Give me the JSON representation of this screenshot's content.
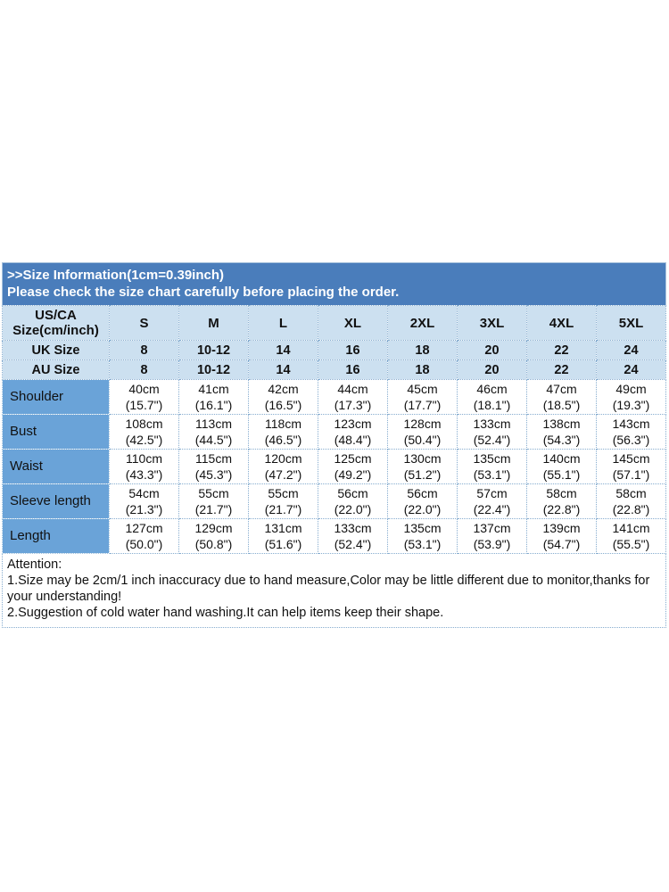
{
  "banner": {
    "line1": ">>Size Information(1cm=0.39inch)",
    "line2": "Please check the size chart carefully before placing the order."
  },
  "table": {
    "corner_label": "US/CA\nSize(cm/inch)",
    "size_columns": [
      "S",
      "M",
      "L",
      "XL",
      "2XL",
      "3XL",
      "4XL",
      "5XL"
    ],
    "uk": {
      "label": "UK Size",
      "values": [
        "8",
        "10-12",
        "14",
        "16",
        "18",
        "20",
        "22",
        "24"
      ]
    },
    "au": {
      "label": "AU Size",
      "values": [
        "8",
        "10-12",
        "14",
        "16",
        "18",
        "20",
        "22",
        "24"
      ]
    },
    "rows": [
      {
        "label": "Shoulder",
        "cells": [
          "40cm\n(15.7\")",
          "41cm\n(16.1\")",
          "42cm\n(16.5\")",
          "44cm\n(17.3\")",
          "45cm\n(17.7\")",
          "46cm\n(18.1\")",
          "47cm\n(18.5\")",
          "49cm\n(19.3\")"
        ]
      },
      {
        "label": "Bust",
        "cells": [
          "108cm\n(42.5\")",
          "113cm\n(44.5\")",
          "118cm\n(46.5\")",
          "123cm\n(48.4\")",
          "128cm\n(50.4\")",
          "133cm\n(52.4\")",
          "138cm\n(54.3\")",
          "143cm\n(56.3\")"
        ]
      },
      {
        "label": "Waist",
        "cells": [
          "110cm\n(43.3\")",
          "115cm\n(45.3\")",
          "120cm\n(47.2\")",
          "125cm\n(49.2\")",
          "130cm\n(51.2\")",
          "135cm\n(53.1\")",
          "140cm\n(55.1\")",
          "145cm\n(57.1\")"
        ]
      },
      {
        "label": "Sleeve length",
        "cells": [
          "54cm\n(21.3\")",
          "55cm\n(21.7\")",
          "55cm\n(21.7\")",
          "56cm\n(22.0\")",
          "56cm\n(22.0\")",
          "57cm\n(22.4\")",
          "58cm\n(22.8\")",
          "58cm\n(22.8\")"
        ]
      },
      {
        "label": "Length",
        "cells": [
          "127cm\n(50.0\")",
          "129cm\n(50.8\")",
          "131cm\n(51.6\")",
          "133cm\n(52.4\")",
          "135cm\n(53.1\")",
          "137cm\n(53.9\")",
          "139cm\n(54.7\")",
          "141cm\n(55.5\")"
        ]
      }
    ]
  },
  "attention": {
    "heading": "Attention:",
    "line1": "1.Size may be 2cm/1 inch inaccuracy due to hand measure,Color may be little different due to monitor,thanks for your understanding!",
    "line2": "2.Suggestion of cold water hand washing.It can help items keep their shape."
  },
  "colors": {
    "banner_blue": "#4a7dbb",
    "header_light_blue": "#cce0f0",
    "label_column_blue": "#6aa3d8",
    "border_dotted_blue": "#86accf",
    "banner_text": "#ffffff",
    "body_text": "#111111"
  }
}
